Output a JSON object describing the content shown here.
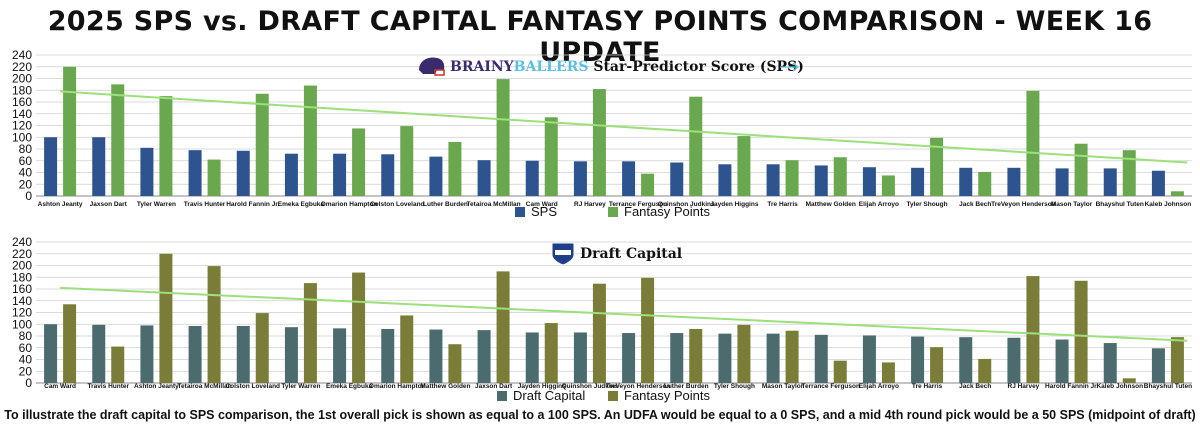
{
  "page": {
    "title": "2025 SPS vs. DRAFT CAPITAL FANTASY POINTS COMPARISON - WEEK 16 UPDATE",
    "footnote": "To illustrate the draft capital to SPS comparison, the 1st overall pick is shown as equal to a 100 SPS. An UDFA would be equal to a 0 SPS, and a mid 4th round pick would be a 50 SPS (midpoint of draft)"
  },
  "chart_data": [
    {
      "type": "bar",
      "header": {
        "brand_part1": "BRAINY",
        "brand_part2": "BALLERS",
        "brand_rest": " Star-Predictor Score (SPS)",
        "logo_icon": "helmet-icon"
      },
      "categories": [
        "Ashton Jeanty",
        "Jaxson Dart",
        "Tyler Warren",
        "Travis Hunter",
        "Harold Fannin Jr.",
        "Emeka Egbuka",
        "Omarion Hampton",
        "Colston Loveland",
        "Luther Burden",
        "Tetairoa McMillan",
        "Cam Ward",
        "RJ Harvey",
        "Terrance Ferguson",
        "Quinshon Judkins",
        "Jayden Higgins",
        "Tre Harris",
        "Matthew Golden",
        "Elijah Arroyo",
        "Tyler Shough",
        "Jack Bech",
        "TreVeyon Henderson",
        "Mason Taylor",
        "Bhayshul Tuten",
        "Kaleb Johnson"
      ],
      "series": [
        {
          "name": "SPS",
          "color": "#2e5490",
          "values": [
            100,
            100,
            82,
            78,
            77,
            72,
            72,
            71,
            67,
            61,
            60,
            59,
            59,
            57,
            54,
            54,
            52,
            49,
            48,
            48,
            48,
            47,
            47,
            43
          ]
        },
        {
          "name": "Fantasy Points",
          "color": "#6aa84f",
          "values": [
            220,
            190,
            170,
            62,
            174,
            188,
            115,
            119,
            92,
            199,
            134,
            182,
            38,
            169,
            102,
            61,
            66,
            35,
            99,
            41,
            179,
            89,
            78,
            8
          ]
        }
      ],
      "trendline": {
        "color": "#9be07a",
        "start": 178,
        "end": 57
      },
      "ylim": [
        0,
        240
      ],
      "yticks": [
        0,
        20,
        40,
        60,
        80,
        100,
        120,
        140,
        160,
        180,
        200,
        220,
        240
      ],
      "grid": true,
      "legend": "bottom"
    },
    {
      "type": "bar",
      "header": {
        "title": "Draft Capital",
        "logo_icon": "draft-shield-icon"
      },
      "categories": [
        "Cam Ward",
        "Travis Hunter",
        "Ashton Jeanty",
        "Tetairoa McMillan",
        "Colston Loveland",
        "Tyler Warren",
        "Emeka Egbuka",
        "Omarion Hampton",
        "Matthew Golden",
        "Jaxson Dart",
        "Jayden Higgins",
        "Quinshon Judkins",
        "TreVeyon Henderson",
        "Luther Burden",
        "Tyler Shough",
        "Mason Taylor",
        "Terrance Ferguson",
        "Elijah Arroyo",
        "Tre Harris",
        "Jack Bech",
        "RJ Harvey",
        "Harold Fannin Jr.",
        "Kaleb Johnson",
        "Bhayshul Tuten"
      ],
      "series": [
        {
          "name": "Draft Capital",
          "color": "#4b6b6e",
          "values": [
            100,
            99,
            98,
            97,
            97,
            95,
            93,
            92,
            91,
            90,
            86,
            86,
            85,
            85,
            84,
            84,
            82,
            81,
            79,
            78,
            77,
            74,
            68,
            59
          ]
        },
        {
          "name": "Fantasy Points",
          "color": "#7a7d38",
          "values": [
            134,
            62,
            220,
            199,
            119,
            170,
            188,
            115,
            66,
            190,
            102,
            169,
            179,
            92,
            99,
            89,
            38,
            35,
            61,
            41,
            182,
            174,
            8,
            78
          ]
        }
      ],
      "trendline": {
        "color": "#9be07a",
        "start": 162,
        "end": 72
      },
      "ylim": [
        0,
        240
      ],
      "yticks": [
        0,
        20,
        40,
        60,
        80,
        100,
        120,
        140,
        160,
        180,
        200,
        220,
        240
      ],
      "grid": true,
      "legend": "bottom"
    }
  ]
}
